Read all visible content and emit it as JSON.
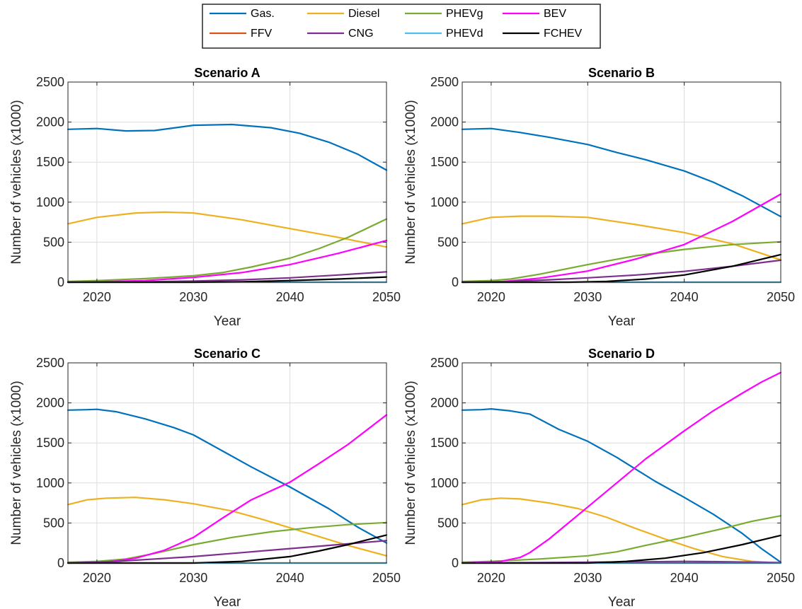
{
  "legend": [
    {
      "key": "gas",
      "label": "Gas.",
      "color": "#0072BD"
    },
    {
      "key": "diesel",
      "label": "Diesel",
      "color": "#EDB120"
    },
    {
      "key": "phevg",
      "label": "PHEVg",
      "color": "#77AC30"
    },
    {
      "key": "bev",
      "label": "BEV",
      "color": "#FF00FF"
    },
    {
      "key": "ffv",
      "label": "FFV",
      "color": "#D95319"
    },
    {
      "key": "cng",
      "label": "CNG",
      "color": "#7E2F8E"
    },
    {
      "key": "phevd",
      "label": "PHEVd",
      "color": "#4DBEEE"
    },
    {
      "key": "fchev",
      "label": "FCHEV",
      "color": "#000000"
    }
  ],
  "chart_data": [
    {
      "type": "line",
      "title": "Scenario A",
      "xlabel": "Year",
      "ylabel": "Number of vehicles (x1000)",
      "xlim": [
        2017,
        2050
      ],
      "ylim": [
        0,
        2500
      ],
      "xticks": [
        2020,
        2030,
        2040,
        2050
      ],
      "yticks": [
        0,
        500,
        1000,
        1500,
        2000,
        2500
      ],
      "grid": true,
      "legend_position": "top-center",
      "series": [
        {
          "key": "gas",
          "name": "Gas.",
          "x": [
            2017,
            2020,
            2023,
            2026,
            2030,
            2034,
            2038,
            2041,
            2044,
            2047,
            2050
          ],
          "y": [
            1910,
            1920,
            1890,
            1895,
            1960,
            1970,
            1930,
            1860,
            1750,
            1600,
            1400
          ]
        },
        {
          "key": "diesel",
          "name": "Diesel",
          "x": [
            2017,
            2020,
            2024,
            2027,
            2030,
            2035,
            2040,
            2045,
            2050
          ],
          "y": [
            730,
            810,
            865,
            875,
            865,
            780,
            670,
            560,
            440
          ]
        },
        {
          "key": "phevg",
          "name": "PHEVg",
          "x": [
            2017,
            2020,
            2025,
            2030,
            2033,
            2036,
            2040,
            2043,
            2046,
            2050
          ],
          "y": [
            10,
            20,
            45,
            80,
            120,
            190,
            300,
            420,
            560,
            790
          ]
        },
        {
          "key": "bev",
          "name": "BEV",
          "x": [
            2017,
            2020,
            2025,
            2030,
            2035,
            2040,
            2045,
            2050
          ],
          "y": [
            0,
            5,
            20,
            60,
            120,
            220,
            360,
            520
          ]
        },
        {
          "key": "ffv",
          "name": "FFV",
          "x": [
            2017,
            2050
          ],
          "y": [
            0,
            0
          ]
        },
        {
          "key": "cng",
          "name": "CNG",
          "x": [
            2017,
            2025,
            2030,
            2035,
            2040,
            2045,
            2050
          ],
          "y": [
            0,
            5,
            15,
            30,
            55,
            90,
            130
          ]
        },
        {
          "key": "phevd",
          "name": "PHEVd",
          "x": [
            2017,
            2050
          ],
          "y": [
            0,
            0
          ]
        },
        {
          "key": "fchev",
          "name": "FCHEV",
          "x": [
            2017,
            2030,
            2035,
            2040,
            2045,
            2050
          ],
          "y": [
            0,
            0,
            5,
            20,
            40,
            65
          ]
        }
      ]
    },
    {
      "type": "line",
      "title": "Scenario B",
      "xlabel": "Year",
      "ylabel": "Number of vehicles (x1000)",
      "xlim": [
        2017,
        2050
      ],
      "ylim": [
        0,
        2500
      ],
      "xticks": [
        2020,
        2030,
        2040,
        2050
      ],
      "yticks": [
        0,
        500,
        1000,
        1500,
        2000,
        2500
      ],
      "grid": true,
      "series": [
        {
          "key": "gas",
          "name": "Gas.",
          "x": [
            2017,
            2020,
            2023,
            2026,
            2030,
            2033,
            2036,
            2040,
            2043,
            2046,
            2050
          ],
          "y": [
            1910,
            1920,
            1870,
            1810,
            1720,
            1620,
            1530,
            1390,
            1250,
            1080,
            820
          ]
        },
        {
          "key": "diesel",
          "name": "Diesel",
          "x": [
            2017,
            2020,
            2023,
            2026,
            2030,
            2035,
            2040,
            2045,
            2050
          ],
          "y": [
            730,
            810,
            825,
            825,
            810,
            720,
            620,
            480,
            280
          ]
        },
        {
          "key": "phevg",
          "name": "PHEVg",
          "x": [
            2017,
            2020,
            2022,
            2025,
            2030,
            2035,
            2040,
            2045,
            2050
          ],
          "y": [
            10,
            20,
            40,
            100,
            220,
            330,
            410,
            470,
            505
          ]
        },
        {
          "key": "bev",
          "name": "BEV",
          "x": [
            2017,
            2021,
            2025,
            2030,
            2035,
            2040,
            2045,
            2050
          ],
          "y": [
            0,
            5,
            50,
            140,
            290,
            470,
            760,
            1100
          ]
        },
        {
          "key": "ffv",
          "name": "FFV",
          "x": [
            2017,
            2050
          ],
          "y": [
            0,
            0
          ]
        },
        {
          "key": "cng",
          "name": "CNG",
          "x": [
            2017,
            2022,
            2026,
            2030,
            2035,
            2040,
            2045,
            2050
          ],
          "y": [
            0,
            10,
            30,
            55,
            90,
            135,
            200,
            275
          ]
        },
        {
          "key": "phevd",
          "name": "PHEVd",
          "x": [
            2017,
            2050
          ],
          "y": [
            0,
            0
          ]
        },
        {
          "key": "fchev",
          "name": "FCHEV",
          "x": [
            2017,
            2028,
            2032,
            2036,
            2040,
            2045,
            2050
          ],
          "y": [
            0,
            0,
            10,
            40,
            90,
            200,
            345
          ]
        }
      ]
    },
    {
      "type": "line",
      "title": "Scenario C",
      "xlabel": "Year",
      "ylabel": "Number of vehicles (x1000)",
      "xlim": [
        2017,
        2050
      ],
      "ylim": [
        0,
        2500
      ],
      "xticks": [
        2020,
        2030,
        2040,
        2050
      ],
      "yticks": [
        0,
        500,
        1000,
        1500,
        2000,
        2500
      ],
      "grid": true,
      "series": [
        {
          "key": "gas",
          "name": "Gas.",
          "x": [
            2017,
            2019,
            2020,
            2022,
            2025,
            2028,
            2030,
            2033,
            2036,
            2040,
            2044,
            2047,
            2050
          ],
          "y": [
            1910,
            1915,
            1920,
            1890,
            1800,
            1690,
            1600,
            1400,
            1200,
            950,
            680,
            450,
            250
          ]
        },
        {
          "key": "diesel",
          "name": "Diesel",
          "x": [
            2017,
            2019,
            2021,
            2024,
            2027,
            2030,
            2034,
            2037,
            2040,
            2043,
            2046,
            2050
          ],
          "y": [
            730,
            790,
            810,
            820,
            790,
            740,
            650,
            550,
            440,
            330,
            220,
            90
          ]
        },
        {
          "key": "phevg",
          "name": "PHEVg",
          "x": [
            2017,
            2020,
            2023,
            2026,
            2030,
            2034,
            2038,
            2042,
            2046,
            2050
          ],
          "y": [
            10,
            20,
            50,
            120,
            230,
            320,
            390,
            440,
            480,
            505
          ]
        },
        {
          "key": "bev",
          "name": "BEV",
          "x": [
            2017,
            2021,
            2024,
            2027,
            2030,
            2033,
            2036,
            2040,
            2043,
            2046,
            2050
          ],
          "y": [
            0,
            10,
            60,
            160,
            320,
            560,
            790,
            1010,
            1240,
            1480,
            1850
          ]
        },
        {
          "key": "ffv",
          "name": "FFV",
          "x": [
            2017,
            2050
          ],
          "y": [
            0,
            0
          ]
        },
        {
          "key": "cng",
          "name": "CNG",
          "x": [
            2017,
            2022,
            2026,
            2030,
            2035,
            2040,
            2045,
            2050
          ],
          "y": [
            0,
            20,
            50,
            80,
            130,
            180,
            230,
            280
          ]
        },
        {
          "key": "phevd",
          "name": "PHEVd",
          "x": [
            2017,
            2050
          ],
          "y": [
            0,
            0
          ]
        },
        {
          "key": "fchev",
          "name": "FCHEV",
          "x": [
            2017,
            2030,
            2035,
            2040,
            2043,
            2046,
            2050
          ],
          "y": [
            0,
            0,
            20,
            80,
            150,
            230,
            350
          ]
        }
      ]
    },
    {
      "type": "line",
      "title": "Scenario D",
      "xlabel": "Year",
      "ylabel": "Number of vehicles (x1000)",
      "xlim": [
        2017,
        2050
      ],
      "ylim": [
        0,
        2500
      ],
      "xticks": [
        2020,
        2030,
        2040,
        2050
      ],
      "yticks": [
        0,
        500,
        1000,
        1500,
        2000,
        2500
      ],
      "grid": true,
      "series": [
        {
          "key": "gas",
          "name": "Gas.",
          "x": [
            2017,
            2019,
            2020,
            2022,
            2024,
            2027,
            2030,
            2033,
            2037,
            2040,
            2043,
            2046,
            2048,
            2050
          ],
          "y": [
            1910,
            1915,
            1925,
            1900,
            1860,
            1670,
            1520,
            1320,
            1020,
            820,
            610,
            370,
            180,
            10
          ]
        },
        {
          "key": "diesel",
          "name": "Diesel",
          "x": [
            2017,
            2019,
            2021,
            2023,
            2026,
            2029,
            2032,
            2035,
            2038,
            2041,
            2044,
            2047,
            2050
          ],
          "y": [
            730,
            790,
            810,
            800,
            750,
            680,
            570,
            430,
            300,
            180,
            80,
            20,
            0
          ]
        },
        {
          "key": "phevg",
          "name": "PHEVg",
          "x": [
            2017,
            2020,
            2025,
            2030,
            2033,
            2036,
            2040,
            2044,
            2047,
            2050
          ],
          "y": [
            10,
            20,
            50,
            90,
            140,
            220,
            320,
            430,
            520,
            590
          ]
        },
        {
          "key": "bev",
          "name": "BEV",
          "x": [
            2017,
            2021,
            2023,
            2024,
            2026,
            2028,
            2030,
            2033,
            2036,
            2040,
            2043,
            2046,
            2048,
            2050
          ],
          "y": [
            0,
            20,
            70,
            130,
            300,
            500,
            700,
            1000,
            1300,
            1650,
            1900,
            2120,
            2260,
            2380
          ]
        },
        {
          "key": "ffv",
          "name": "FFV",
          "x": [
            2017,
            2050
          ],
          "y": [
            0,
            0
          ]
        },
        {
          "key": "cng",
          "name": "CNG",
          "x": [
            2017,
            2025,
            2030,
            2035,
            2040,
            2045,
            2050
          ],
          "y": [
            0,
            5,
            10,
            15,
            20,
            15,
            5
          ]
        },
        {
          "key": "phevd",
          "name": "PHEVd",
          "x": [
            2017,
            2050
          ],
          "y": [
            0,
            0
          ]
        },
        {
          "key": "fchev",
          "name": "FCHEV",
          "x": [
            2017,
            2030,
            2034,
            2038,
            2042,
            2046,
            2050
          ],
          "y": [
            0,
            0,
            20,
            60,
            130,
            230,
            345
          ]
        }
      ]
    }
  ]
}
